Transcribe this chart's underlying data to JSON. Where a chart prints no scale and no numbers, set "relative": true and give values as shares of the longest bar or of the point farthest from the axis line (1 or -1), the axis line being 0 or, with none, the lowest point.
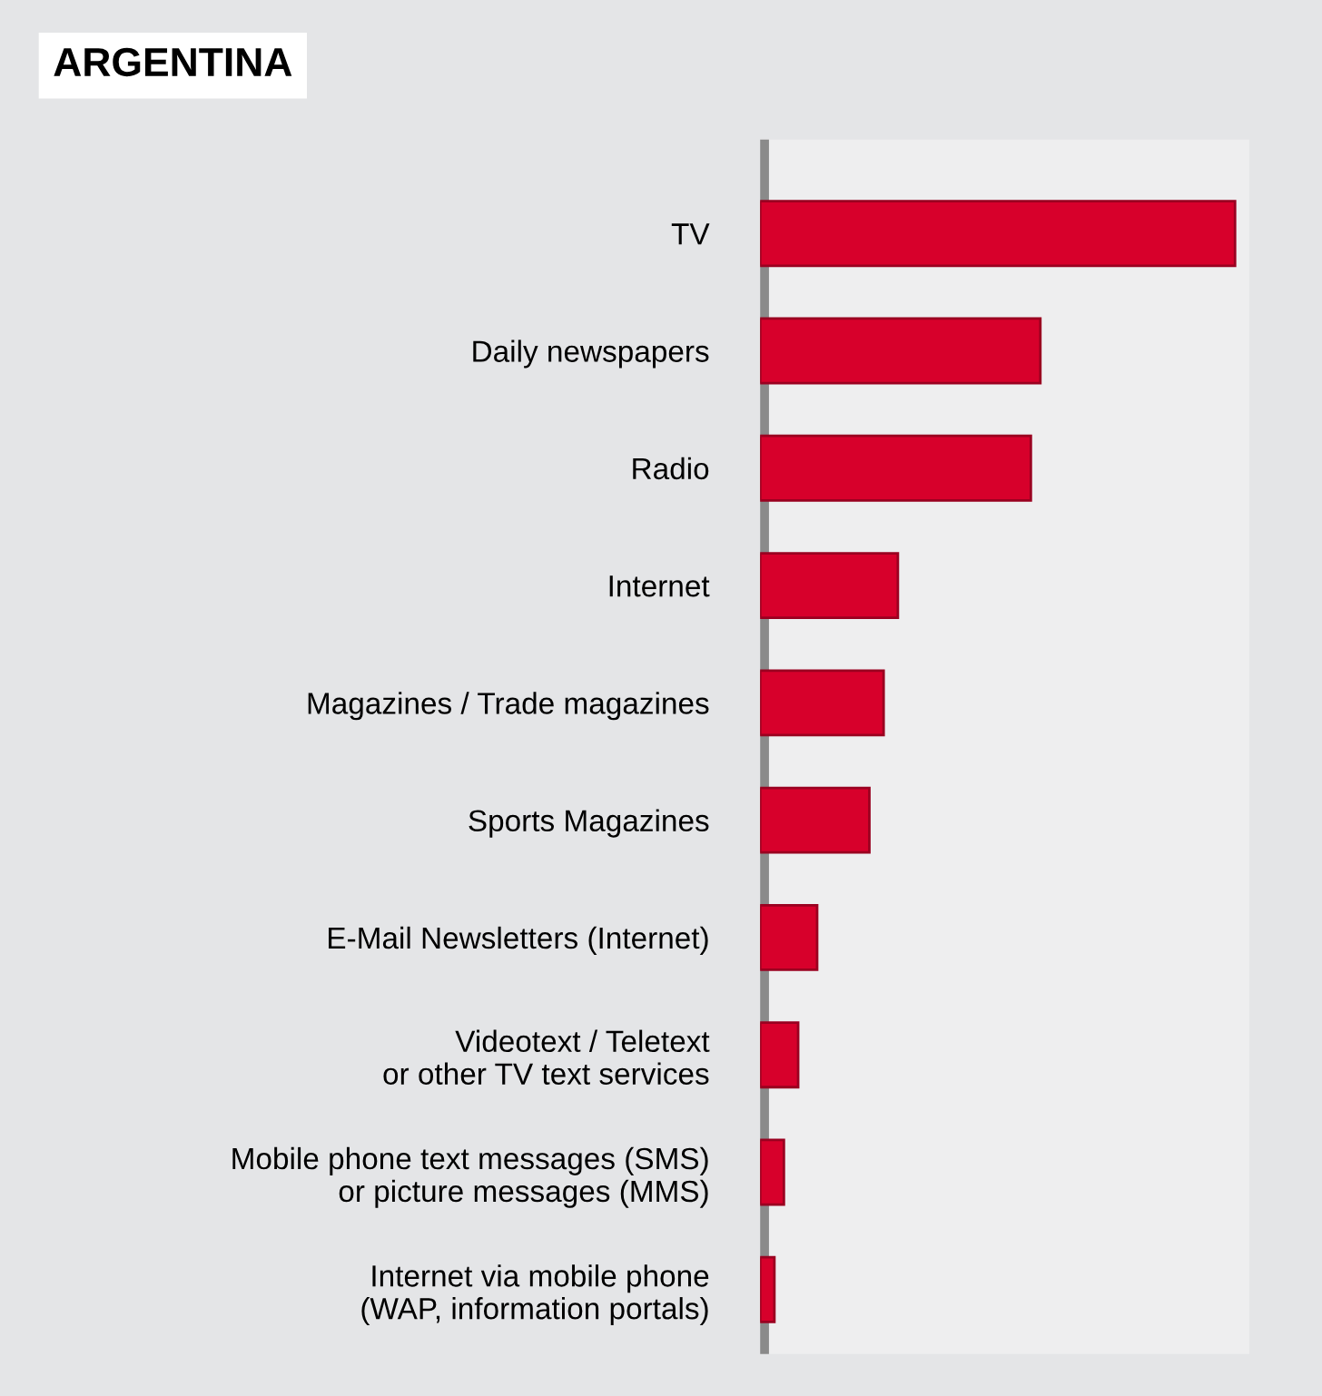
{
  "chart_data": {
    "type": "bar",
    "title": "ARGENTINA",
    "orientation": "horizontal",
    "relative": true,
    "categories": [
      "TV",
      "Daily newspapers",
      "Radio",
      "Internet",
      "Magazines / Trade magazines",
      "Sports Magazines",
      "E-Mail Newsletters (Internet)",
      "Videotext / Teletext\nor other TV text services",
      "Mobile phone text messages (SMS)\nor picture messages (MMS)",
      "Internet via mobile phone\n(WAP, information portals)"
    ],
    "values": [
      1,
      0.59,
      0.57,
      0.29,
      0.26,
      0.23,
      0.12,
      0.08,
      0.05,
      0.03
    ],
    "color": "#d7002b",
    "grid": false,
    "legend": false
  }
}
